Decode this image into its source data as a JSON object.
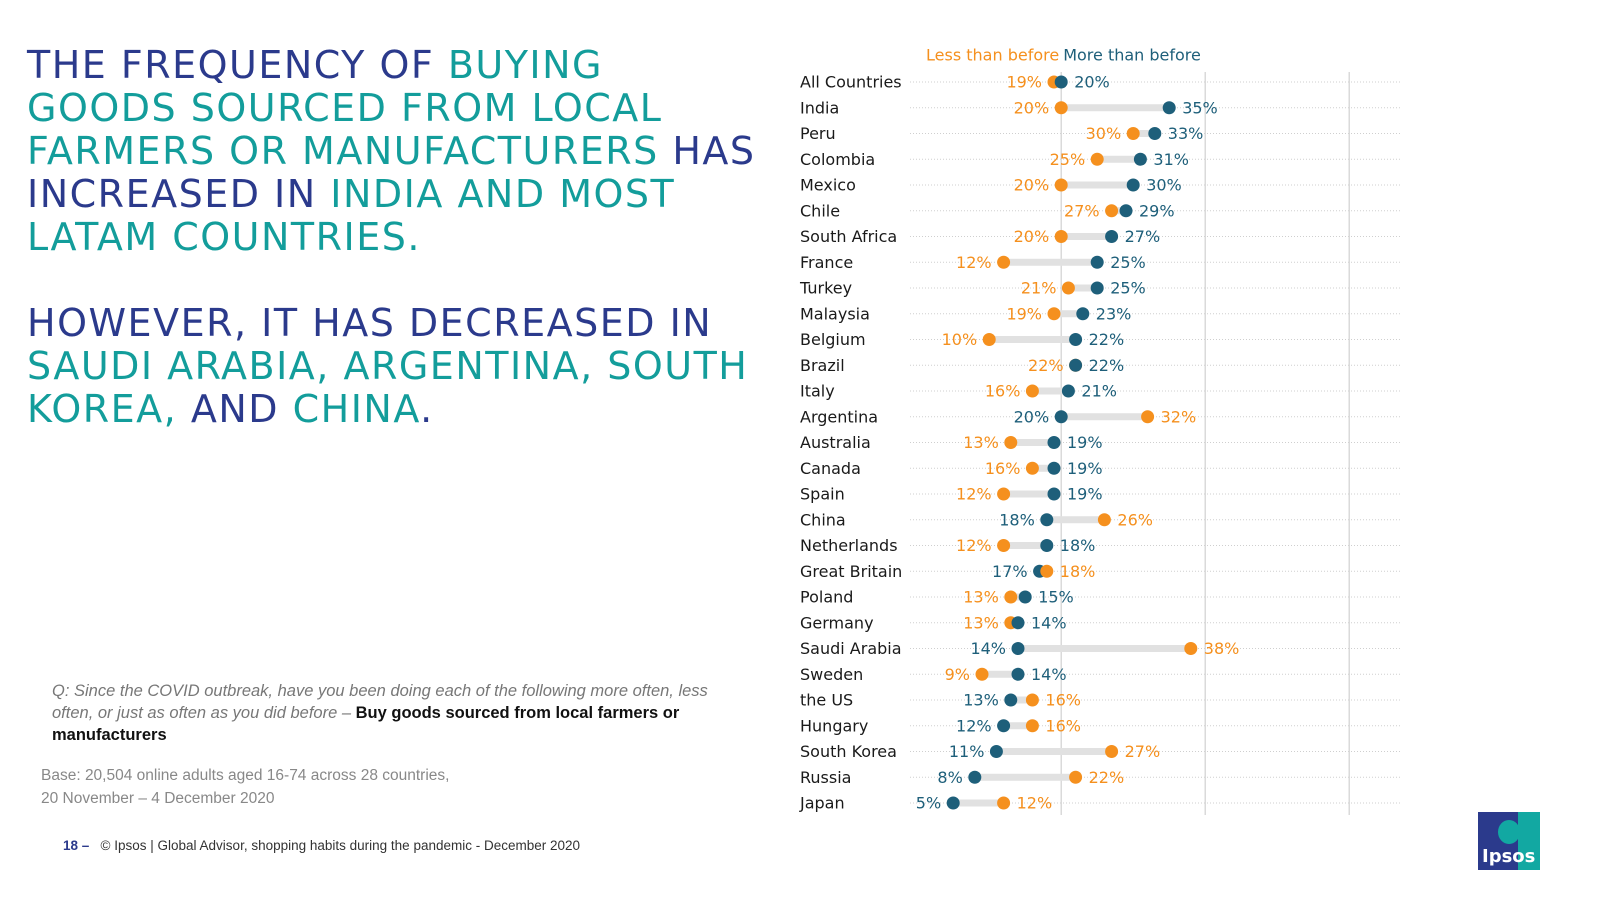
{
  "headline": {
    "p1": [
      {
        "text": "THE FREQUENCY OF ",
        "style": "navy"
      },
      {
        "text": "BUYING GOODS SOURCED FROM LOCAL FARMERS OR MANUFACTURERS ",
        "style": "teal"
      },
      {
        "text": "HAS INCREASED IN ",
        "style": "navy"
      },
      {
        "text": "INDIA AND MOST LATAM COUNTRIES.",
        "style": "teal"
      }
    ],
    "p2": [
      {
        "text": "HOWEVER, IT HAS DECREASED IN ",
        "style": "navy"
      },
      {
        "text": "SAUDI ARABIA, ARGENTINA, SOUTH KOREA, ",
        "style": "teal"
      },
      {
        "text": "AND ",
        "style": "navy"
      },
      {
        "text": "CHINA",
        "style": "teal"
      },
      {
        "text": ".",
        "style": "navy"
      }
    ]
  },
  "question": {
    "prefix": "Q: Since the COVID outbreak, have you been doing each of the following more often, less often, or just as often as you did before – ",
    "bold": "Buy goods sourced from local farmers or manufacturers"
  },
  "base": {
    "line1": "Base: 20,504 online adults aged 16-74 across 28 countries,",
    "line2": "20 November – 4 December 2020"
  },
  "footer": {
    "page": "18 –",
    "text": "© Ipsos |  Global Advisor, shopping habits during the pandemic - December 2020"
  },
  "logo": {
    "text": "Ipsos"
  },
  "colors": {
    "navy": "#2b3a8c",
    "teal": "#139d9b",
    "less": "#f5901e",
    "more": "#1e5f7a",
    "connector": "#e1e1e1",
    "gridline": "#d4d4d4"
  },
  "chart_data": {
    "type": "dumbbell",
    "unit": "%",
    "legend_position": "top",
    "series": [
      {
        "name": "Less than before",
        "key": "less"
      },
      {
        "name": "More than before",
        "key": "more"
      }
    ],
    "categories": [
      "All Countries",
      "India",
      "Peru",
      "Colombia",
      "Mexico",
      "Chile",
      "South Africa",
      "France",
      "Turkey",
      "Malaysia",
      "Belgium",
      "Brazil",
      "Italy",
      "Argentina",
      "Australia",
      "Canada",
      "Spain",
      "China",
      "Netherlands",
      "Great Britain",
      "Poland",
      "Germany",
      "Saudi Arabia",
      "Sweden",
      "the US",
      "Hungary",
      "South Korea",
      "Russia",
      "Japan"
    ],
    "less": [
      19,
      20,
      30,
      25,
      20,
      27,
      20,
      12,
      21,
      19,
      10,
      22,
      16,
      32,
      13,
      16,
      12,
      26,
      12,
      18,
      13,
      13,
      38,
      9,
      16,
      16,
      27,
      22,
      12
    ],
    "more": [
      20,
      35,
      33,
      31,
      30,
      29,
      27,
      25,
      25,
      23,
      22,
      22,
      21,
      20,
      19,
      19,
      19,
      18,
      18,
      17,
      15,
      14,
      14,
      14,
      13,
      12,
      11,
      8,
      5
    ],
    "xlim": [
      -1,
      60
    ],
    "grid": true
  }
}
